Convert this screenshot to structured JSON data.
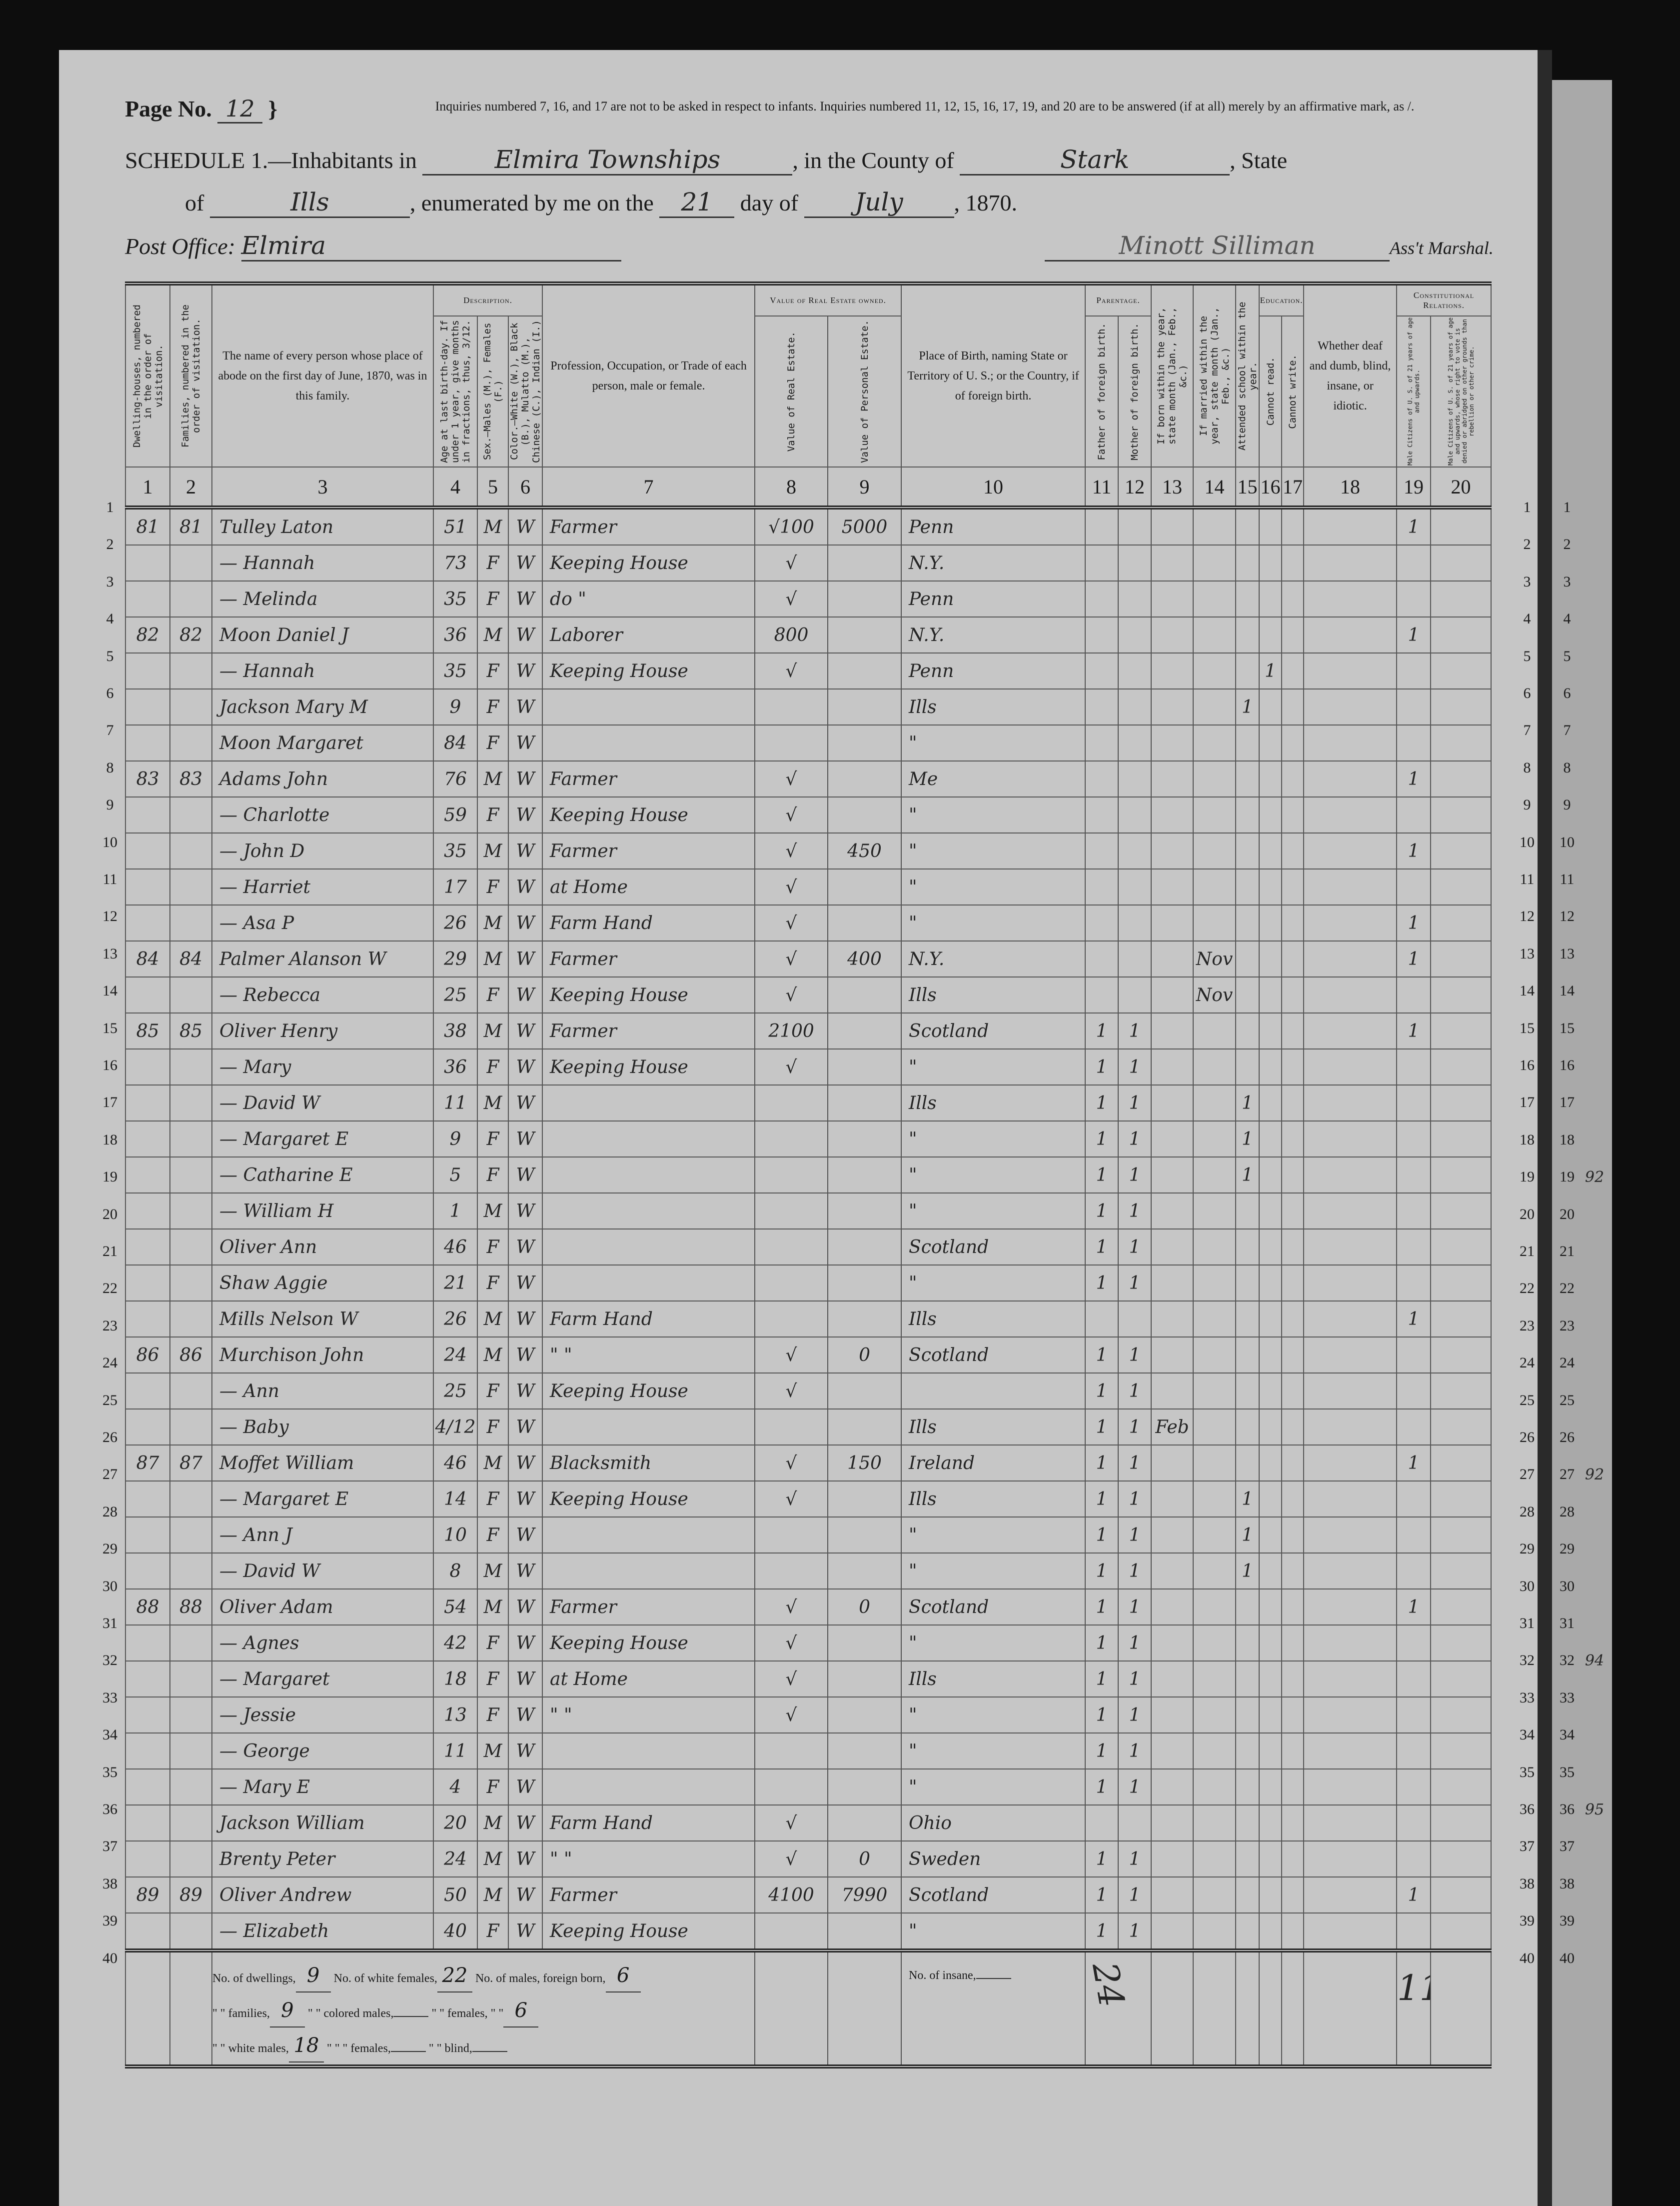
{
  "header": {
    "page_label": "Page No.",
    "page_no": "12",
    "instruction": "Inquiries numbered 7, 16, and 17 are not to be asked in respect to infants. Inquiries numbered 11, 12, 15, 16, 17, 19, and 20 are to be answered (if at all) merely by an affirmative mark, as /.",
    "schedule_label": "SCHEDULE 1.—Inhabitants in",
    "place": "Elmira Townships",
    "county_label": ", in the County of",
    "county": "Stark",
    "state_label": ", State",
    "of_label": "of",
    "state": "Ills",
    "enumerated_label": ", enumerated by me on the",
    "day": "21",
    "day_of_label": "day of",
    "month": "July",
    "year_label": ", 1870.",
    "post_office_label": "Post Office:",
    "post_office": "Elmira",
    "marshal_signature": "Minott Silliman",
    "marshal_label": "Ass't Marshal."
  },
  "columns": {
    "groups": {
      "description": "Description.",
      "real_estate": "Value of Real Estate owned.",
      "parentage": "Parentage.",
      "education": "Education.",
      "constitutional": "Constitutional Relations."
    },
    "c1": "Dwelling-houses, numbered in the order of visitation.",
    "c2": "Families, numbered in the order of visitation.",
    "c3": "The name of every person whose place of abode on the first day of June, 1870, was in this family.",
    "c4": "Age at last birth-day. If under 1 year, give months in fractions, thus, 3/12.",
    "c5": "Sex.—Males (M.), Females (F.)",
    "c6": "Color.—White (W.), Black (B.), Mulatto (M.), Chinese (C.), Indian (I.)",
    "c7": "Profession, Occupation, or Trade of each person, male or female.",
    "c8": "Value of Real Estate.",
    "c9": "Value of Personal Estate.",
    "c10": "Place of Birth, naming State or Territory of U. S.; or the Country, if of foreign birth.",
    "c11": "Father of foreign birth.",
    "c12": "Mother of foreign birth.",
    "c13": "If born within the year, state month (Jan., Feb., &c.)",
    "c14": "If married within the year, state month (Jan., Feb., &c.)",
    "c15": "Attended school within the year.",
    "c16": "Cannot read.",
    "c17": "Cannot write.",
    "c18": "Whether deaf and dumb, blind, insane, or idiotic.",
    "c19": "Male Citizens of U. S. of 21 years of age and upwards.",
    "c20": "Male Citizens of U. S. of 21 years of age and upwards, whose right to vote is denied or abridged on other grounds than rebellion or other crime.",
    "numbers": [
      "1",
      "2",
      "3",
      "4",
      "5",
      "6",
      "7",
      "8",
      "9",
      "10",
      "11",
      "12",
      "13",
      "14",
      "15",
      "16",
      "17",
      "18",
      "19",
      "20"
    ]
  },
  "rows": [
    [
      "81",
      "81",
      "Tulley Laton",
      "51",
      "M",
      "W",
      "Farmer",
      "√100",
      "5000",
      "Penn",
      "",
      "",
      "",
      "",
      "",
      "",
      "",
      "",
      "1",
      ""
    ],
    [
      "",
      "",
      "— Hannah",
      "73",
      "F",
      "W",
      "Keeping House",
      "√",
      "",
      "N.Y.",
      "",
      "",
      "",
      "",
      "",
      "",
      "",
      "",
      "",
      ""
    ],
    [
      "",
      "",
      "— Melinda",
      "35",
      "F",
      "W",
      "do  \"",
      "√",
      "",
      "Penn",
      "",
      "",
      "",
      "",
      "",
      "",
      "",
      "",
      "",
      ""
    ],
    [
      "82",
      "82",
      "Moon Daniel J",
      "36",
      "M",
      "W",
      "Laborer",
      "800",
      "",
      "N.Y.",
      "",
      "",
      "",
      "",
      "",
      "",
      "",
      "",
      "1",
      ""
    ],
    [
      "",
      "",
      "— Hannah",
      "35",
      "F",
      "W",
      "Keeping House",
      "√",
      "",
      "Penn",
      "",
      "",
      "",
      "",
      "",
      "1",
      "",
      "",
      "",
      ""
    ],
    [
      "",
      "",
      "Jackson Mary M",
      "9",
      "F",
      "W",
      "",
      "",
      "",
      "Ills",
      "",
      "",
      "",
      "",
      "1",
      "",
      "",
      "",
      "",
      ""
    ],
    [
      "",
      "",
      "Moon Margaret",
      "84",
      "F",
      "W",
      "",
      "",
      "",
      "\"",
      "",
      "",
      "",
      "",
      "",
      "",
      "",
      "",
      "",
      ""
    ],
    [
      "83",
      "83",
      "Adams John",
      "76",
      "M",
      "W",
      "Farmer",
      "√",
      "",
      "Me",
      "",
      "",
      "",
      "",
      "",
      "",
      "",
      "",
      "1",
      ""
    ],
    [
      "",
      "",
      "— Charlotte",
      "59",
      "F",
      "W",
      "Keeping House",
      "√",
      "",
      "\"",
      "",
      "",
      "",
      "",
      "",
      "",
      "",
      "",
      "",
      ""
    ],
    [
      "",
      "",
      "— John D",
      "35",
      "M",
      "W",
      "Farmer",
      "√",
      "450",
      "\"",
      "",
      "",
      "",
      "",
      "",
      "",
      "",
      "",
      "1",
      ""
    ],
    [
      "",
      "",
      "— Harriet",
      "17",
      "F",
      "W",
      "at Home",
      "√",
      "",
      "\"",
      "",
      "",
      "",
      "",
      "",
      "",
      "",
      "",
      "",
      ""
    ],
    [
      "",
      "",
      "— Asa P",
      "26",
      "M",
      "W",
      "Farm Hand",
      "√",
      "",
      "\"",
      "",
      "",
      "",
      "",
      "",
      "",
      "",
      "",
      "1",
      ""
    ],
    [
      "84",
      "84",
      "Palmer Alanson W",
      "29",
      "M",
      "W",
      "Farmer",
      "√",
      "400",
      "N.Y.",
      "",
      "",
      "",
      "Nov",
      "",
      "",
      "",
      "",
      "1",
      ""
    ],
    [
      "",
      "",
      "— Rebecca",
      "25",
      "F",
      "W",
      "Keeping House",
      "√",
      "",
      "Ills",
      "",
      "",
      "",
      "Nov",
      "",
      "",
      "",
      "",
      "",
      ""
    ],
    [
      "85",
      "85",
      "Oliver Henry",
      "38",
      "M",
      "W",
      "Farmer",
      "2100",
      "",
      "Scotland",
      "1",
      "1",
      "",
      "",
      "",
      "",
      "",
      "",
      "1",
      ""
    ],
    [
      "",
      "",
      "— Mary",
      "36",
      "F",
      "W",
      "Keeping House",
      "√",
      "",
      "\"",
      "1",
      "1",
      "",
      "",
      "",
      "",
      "",
      "",
      "",
      ""
    ],
    [
      "",
      "",
      "— David W",
      "11",
      "M",
      "W",
      "",
      "",
      "",
      "Ills",
      "1",
      "1",
      "",
      "",
      "1",
      "",
      "",
      "",
      "",
      ""
    ],
    [
      "",
      "",
      "— Margaret E",
      "9",
      "F",
      "W",
      "",
      "",
      "",
      "\"",
      "1",
      "1",
      "",
      "",
      "1",
      "",
      "",
      "",
      "",
      ""
    ],
    [
      "",
      "",
      "— Catharine E",
      "5",
      "F",
      "W",
      "",
      "",
      "",
      "\"",
      "1",
      "1",
      "",
      "",
      "1",
      "",
      "",
      "",
      "",
      ""
    ],
    [
      "",
      "",
      "— William H",
      "1",
      "M",
      "W",
      "",
      "",
      "",
      "\"",
      "1",
      "1",
      "",
      "",
      "",
      "",
      "",
      "",
      "",
      ""
    ],
    [
      "",
      "",
      "Oliver Ann",
      "46",
      "F",
      "W",
      "",
      "",
      "",
      "Scotland",
      "1",
      "1",
      "",
      "",
      "",
      "",
      "",
      "",
      "",
      ""
    ],
    [
      "",
      "",
      "Shaw Aggie",
      "21",
      "F",
      "W",
      "",
      "",
      "",
      "\"",
      "1",
      "1",
      "",
      "",
      "",
      "",
      "",
      "",
      "",
      ""
    ],
    [
      "",
      "",
      "Mills Nelson W",
      "26",
      "M",
      "W",
      "Farm Hand",
      "",
      "",
      "Ills",
      "",
      "",
      "",
      "",
      "",
      "",
      "",
      "",
      "1",
      ""
    ],
    [
      "86",
      "86",
      "Murchison John",
      "24",
      "M",
      "W",
      "\"  \"",
      "√",
      "0",
      "Scotland",
      "1",
      "1",
      "",
      "",
      "",
      "",
      "",
      "",
      "",
      ""
    ],
    [
      "",
      "",
      "— Ann",
      "25",
      "F",
      "W",
      "Keeping House",
      "√",
      "",
      "",
      "1",
      "1",
      "",
      "",
      "",
      "",
      "",
      "",
      "",
      ""
    ],
    [
      "",
      "",
      "— Baby",
      "4/12",
      "F",
      "W",
      "",
      "",
      "",
      "Ills",
      "1",
      "1",
      "Feb",
      "",
      "",
      "",
      "",
      "",
      "",
      ""
    ],
    [
      "87",
      "87",
      "Moffet William",
      "46",
      "M",
      "W",
      "Blacksmith",
      "√",
      "150",
      "Ireland",
      "1",
      "1",
      "",
      "",
      "",
      "",
      "",
      "",
      "1",
      ""
    ],
    [
      "",
      "",
      "— Margaret E",
      "14",
      "F",
      "W",
      "Keeping House",
      "√",
      "",
      "Ills",
      "1",
      "1",
      "",
      "",
      "1",
      "",
      "",
      "",
      "",
      ""
    ],
    [
      "",
      "",
      "— Ann J",
      "10",
      "F",
      "W",
      "",
      "",
      "",
      "\"",
      "1",
      "1",
      "",
      "",
      "1",
      "",
      "",
      "",
      "",
      ""
    ],
    [
      "",
      "",
      "— David W",
      "8",
      "M",
      "W",
      "",
      "",
      "",
      "\"",
      "1",
      "1",
      "",
      "",
      "1",
      "",
      "",
      "",
      "",
      ""
    ],
    [
      "88",
      "88",
      "Oliver Adam",
      "54",
      "M",
      "W",
      "Farmer",
      "√",
      "0",
      "Scotland",
      "1",
      "1",
      "",
      "",
      "",
      "",
      "",
      "",
      "1",
      ""
    ],
    [
      "",
      "",
      "— Agnes",
      "42",
      "F",
      "W",
      "Keeping House",
      "√",
      "",
      "\"",
      "1",
      "1",
      "",
      "",
      "",
      "",
      "",
      "",
      "",
      ""
    ],
    [
      "",
      "",
      "— Margaret",
      "18",
      "F",
      "W",
      "at Home",
      "√",
      "",
      "Ills",
      "1",
      "1",
      "",
      "",
      "",
      "",
      "",
      "",
      "",
      ""
    ],
    [
      "",
      "",
      "— Jessie",
      "13",
      "F",
      "W",
      "\"  \"",
      "√",
      "",
      "\"",
      "1",
      "1",
      "",
      "",
      "",
      "",
      "",
      "",
      "",
      ""
    ],
    [
      "",
      "",
      "— George",
      "11",
      "M",
      "W",
      "",
      "",
      "",
      "\"",
      "1",
      "1",
      "",
      "",
      "",
      "",
      "",
      "",
      "",
      ""
    ],
    [
      "",
      "",
      "— Mary E",
      "4",
      "F",
      "W",
      "",
      "",
      "",
      "\"",
      "1",
      "1",
      "",
      "",
      "",
      "",
      "",
      "",
      "",
      ""
    ],
    [
      "",
      "",
      "Jackson William",
      "20",
      "M",
      "W",
      "Farm Hand",
      "√",
      "",
      "Ohio",
      "",
      "",
      "",
      "",
      "",
      "",
      "",
      "",
      "",
      ""
    ],
    [
      "",
      "",
      "Brenty Peter",
      "24",
      "M",
      "W",
      "\"  \"",
      "√",
      "0",
      "Sweden",
      "1",
      "1",
      "",
      "",
      "",
      "",
      "",
      "",
      "",
      ""
    ],
    [
      "89",
      "89",
      "Oliver Andrew",
      "50",
      "M",
      "W",
      "Farmer",
      "4100",
      "7990",
      "Scotland",
      "1",
      "1",
      "",
      "",
      "",
      "",
      "",
      "",
      "1",
      ""
    ],
    [
      "",
      "",
      "— Elizabeth",
      "40",
      "F",
      "W",
      "Keeping House",
      "",
      "",
      "\"",
      "1",
      "1",
      "",
      "",
      "",
      "",
      "",
      "",
      "",
      ""
    ]
  ],
  "line_numbers": [
    "1",
    "2",
    "3",
    "4",
    "5",
    "6",
    "7",
    "8",
    "9",
    "10",
    "11",
    "12",
    "13",
    "14",
    "15",
    "16",
    "17",
    "18",
    "19",
    "20",
    "21",
    "22",
    "23",
    "24",
    "25",
    "26",
    "27",
    "28",
    "29",
    "30",
    "31",
    "32",
    "33",
    "34",
    "35",
    "36",
    "37",
    "38",
    "39",
    "40"
  ],
  "footer": {
    "dwellings_label": "No. of dwellings,",
    "dwellings": "9",
    "white_females_label": "No. of white females,",
    "white_females": "22",
    "males_foreign_label": "No. of males, foreign born,",
    "males_foreign": "6",
    "families_label": "\" \" families,",
    "families": "9",
    "colored_males_label": "\" \" colored males,",
    "colored_males": "",
    "females_foreign_label": "\" \" females,  \"  \"",
    "females_foreign": "6",
    "white_males_label": "\" \" white males,",
    "white_males": "18",
    "colored_females_label": "\" \"  \" females,",
    "colored_females": "",
    "blind_label": "\" \" blind,",
    "blind": "",
    "insane_label": "No. of insane,",
    "insane": "",
    "tally_parentage": "24",
    "tally_citizens": "11"
  },
  "adjacent_page_notes": {
    "19": "92",
    "27": "92",
    "32": "94",
    "36": "95"
  }
}
